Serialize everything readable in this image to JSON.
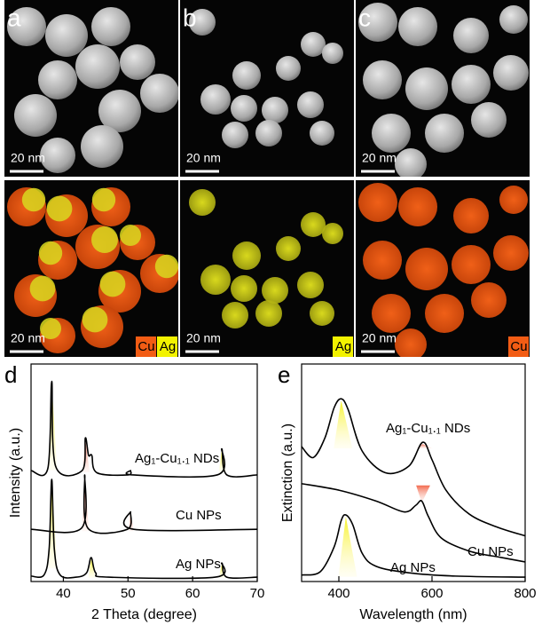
{
  "panels": [
    {
      "label": "a",
      "images": [
        {
          "scale_bar": "20 nm"
        },
        {
          "scale_bar": "20 nm",
          "tags": [
            {
              "text": "Cu",
              "color": "#f25c14"
            },
            {
              "text": "Ag",
              "color": "#f2f200"
            }
          ]
        }
      ]
    },
    {
      "label": "b",
      "images": [
        {
          "scale_bar": "20 nm"
        },
        {
          "scale_bar": "20 nm",
          "tags": [
            {
              "text": "Ag",
              "color": "#f2f200"
            }
          ]
        }
      ]
    },
    {
      "label": "c",
      "images": [
        {
          "scale_bar": "20 nm"
        },
        {
          "scale_bar": "20 nm",
          "tags": [
            {
              "text": "Cu",
              "color": "#f25c14"
            }
          ]
        }
      ]
    }
  ],
  "chart_data": [
    {
      "panel_label": "d",
      "type": "line",
      "xlabel": "2 Theta (degree)",
      "ylabel": "Intensity (a.u.)",
      "xlim": [
        35,
        70
      ],
      "xticks": [
        40,
        50,
        60,
        70
      ],
      "ylim": [
        0,
        10
      ],
      "series": [
        {
          "name": "Ag₁-Cu₁.₁ NDs",
          "color": "#000000",
          "x": [
            35,
            37.6,
            38.2,
            38.8,
            42.9,
            43.4,
            43.9,
            44.4,
            45.2,
            50,
            50.4,
            50.8,
            63.8,
            64.5,
            65.3,
            70
          ],
          "values": [
            5.1,
            5.2,
            9.2,
            5.3,
            5.1,
            6.6,
            5.8,
            5.8,
            5.0,
            4.9,
            5.1,
            4.9,
            4.9,
            6.1,
            4.9,
            4.9
          ]
        },
        {
          "name": "Cu NPs",
          "color": "#000000",
          "x": [
            35,
            42.8,
            43.3,
            43.8,
            49.9,
            50.4,
            50.9,
            70
          ],
          "values": [
            2.4,
            2.45,
            4.9,
            2.45,
            2.4,
            3.2,
            2.4,
            2.4
          ]
        },
        {
          "name": "Ag NPs",
          "color": "#000000",
          "x": [
            35,
            37,
            37.8,
            38.2,
            38.6,
            39.5,
            42,
            43.6,
            44.3,
            45,
            47,
            63.5,
            64.5,
            65.3,
            70
          ],
          "values": [
            0.25,
            0.3,
            1.5,
            4.7,
            1.5,
            0.3,
            0.2,
            0.4,
            1.1,
            0.4,
            0.2,
            0.2,
            0.85,
            0.2,
            0.2
          ]
        }
      ]
    },
    {
      "panel_label": "e",
      "type": "line",
      "xlabel": "Wavelength (nm)",
      "ylabel": "Extinction (a.u.)",
      "xlim": [
        320,
        800
      ],
      "xticks": [
        400,
        600,
        800
      ],
      "ylim": [
        0,
        10
      ],
      "series": [
        {
          "name": "Ag₁-Cu₁.₁ NDs",
          "color": "#000000",
          "x": [
            320,
            345,
            370,
            390,
            405,
            420,
            450,
            500,
            550,
            580,
            600,
            630,
            680,
            740,
            800
          ],
          "values": [
            6.2,
            5.7,
            6.6,
            8.0,
            8.4,
            7.9,
            6.0,
            5.0,
            5.3,
            6.4,
            5.6,
            4.2,
            3.1,
            2.5,
            2.1
          ]
        },
        {
          "name": "Cu NPs",
          "color": "#000000",
          "x": [
            320,
            400,
            480,
            540,
            565,
            578,
            592,
            620,
            680,
            750,
            800
          ],
          "values": [
            4.5,
            4.2,
            3.7,
            3.2,
            3.5,
            3.7,
            3.0,
            2.0,
            1.4,
            1.1,
            0.9
          ]
        },
        {
          "name": "Ag NPs",
          "color": "#000000",
          "x": [
            320,
            360,
            390,
            405,
            415,
            430,
            450,
            480,
            550,
            650,
            800
          ],
          "values": [
            0.3,
            0.45,
            1.6,
            2.8,
            3.06,
            2.6,
            1.3,
            0.7,
            0.4,
            0.25,
            0.2
          ]
        }
      ]
    }
  ]
}
